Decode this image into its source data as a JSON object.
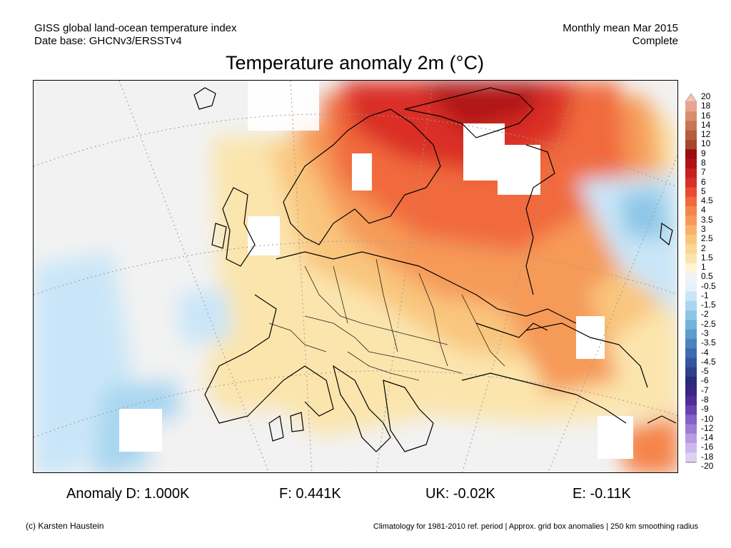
{
  "header": {
    "left_line1": "GISS global land-ocean temperature index",
    "left_line2": "Date base: GHCNv3/ERSSTv4",
    "right_line1": "Monthly mean Mar 2015",
    "right_line2": "Complete"
  },
  "title": "Temperature anomaly 2m (°C)",
  "legend": {
    "labels": [
      "20",
      "18",
      "16",
      "14",
      "12",
      "10",
      "9",
      "8",
      "7",
      "6",
      "5",
      "4.5",
      "4",
      "3.5",
      "3",
      "2.5",
      "2",
      "1.5",
      "1",
      "0.5",
      "-0.5",
      "-1",
      "-1.5",
      "-2",
      "-2.5",
      "-3",
      "-3.5",
      "-4",
      "-4.5",
      "-5",
      "-6",
      "-7",
      "-8",
      "-9",
      "-10",
      "-12",
      "-14",
      "-16",
      "-18",
      "-20"
    ],
    "colors": [
      "#f2c4b0",
      "#e8a590",
      "#d98c70",
      "#c97355",
      "#b85c3e",
      "#a8452a",
      "#9c0d13",
      "#b11218",
      "#c8201f",
      "#da2f28",
      "#e94b32",
      "#f16a3c",
      "#f5844a",
      "#f69a58",
      "#f8b26a",
      "#f9c67e",
      "#fad792",
      "#fbe5ad",
      "#fdf3d5",
      "#f2f2f2",
      "#e6f2fb",
      "#c9e6f8",
      "#a8d6f0",
      "#8cc6e6",
      "#74b3d9",
      "#5e9ccb",
      "#4b84bd",
      "#3d6cae",
      "#34569f",
      "#2d3f8d",
      "#2a2a7a",
      "#3a2585",
      "#4f2c98",
      "#6a42b0",
      "#8560c6",
      "#9e7dd6",
      "#b79be3",
      "#cdb8ec",
      "#ddd0f2",
      "#e9e2f7"
    ]
  },
  "anomalies": {
    "d": "Anomaly D: 1.000K",
    "f": "F: 0.441K",
    "uk": "UK: -0.02K",
    "e": "E: -0.11K"
  },
  "footer": {
    "credit": "(c) Karsten Haustein",
    "climatology": "Climatology for 1981-2010 ref. period | Approx. grid box anomalies | 250 km smoothing radius"
  }
}
